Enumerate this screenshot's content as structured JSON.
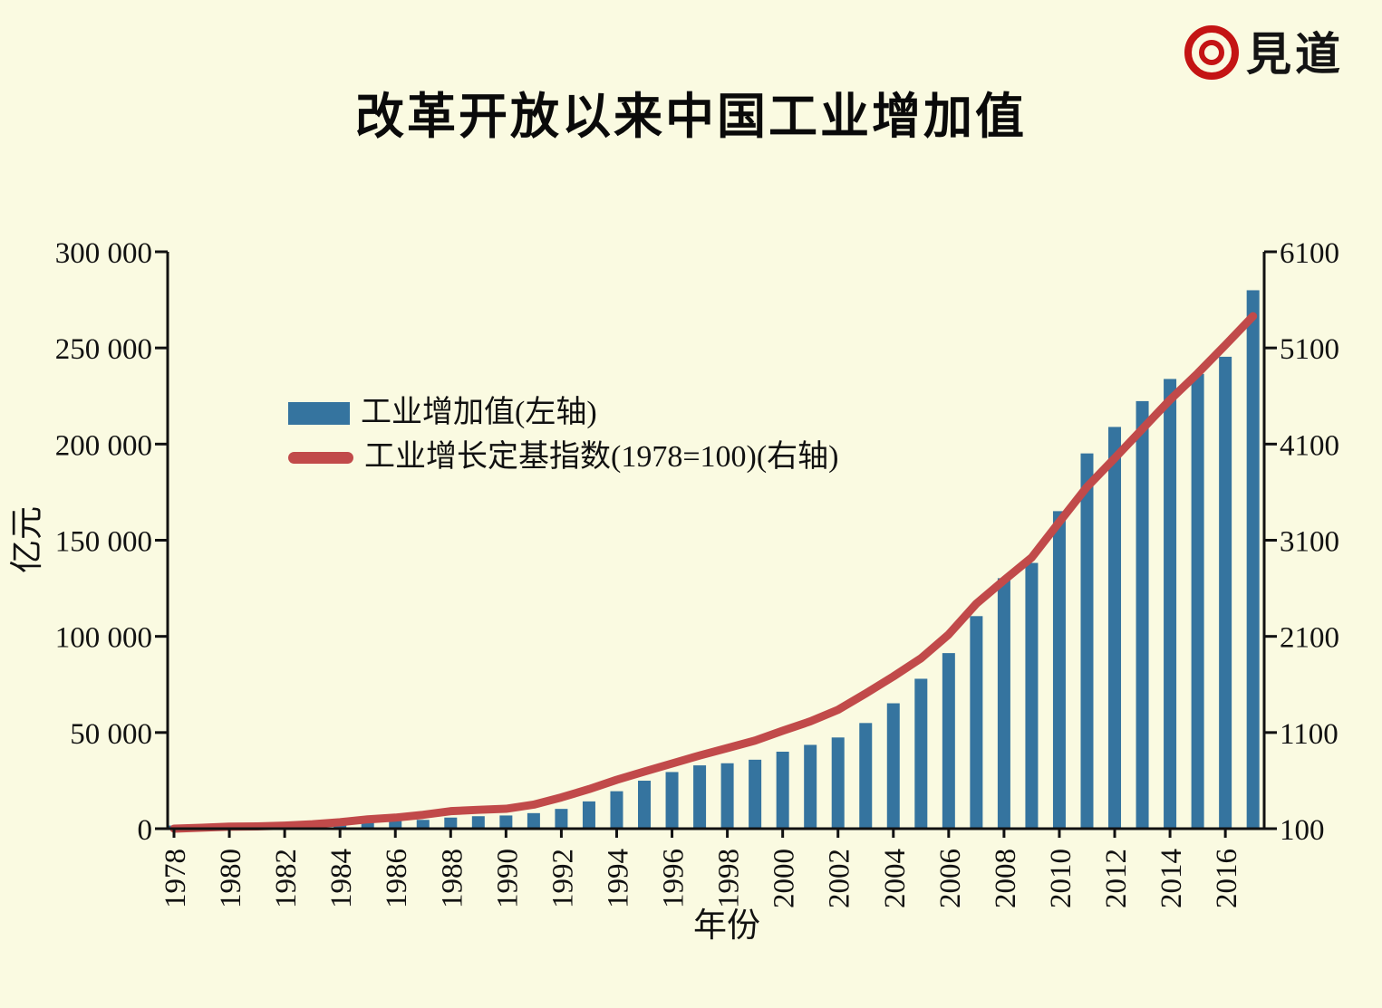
{
  "page": {
    "background": "#fafae1"
  },
  "logo": {
    "icon": "concentric-circles-icon",
    "icon_color": "#c41414",
    "text": "見道"
  },
  "title": "改革开放以来中国工业增加值",
  "legend": {
    "items": [
      {
        "label": "工业增加值(左轴)",
        "swatch": "bar",
        "color": "#35749f"
      },
      {
        "label": "工业增长定基指数(1978=100)(右轴)",
        "swatch": "line",
        "color": "#c14a4a"
      }
    ]
  },
  "chart_data": {
    "type": "bar+line",
    "title": "改革开放以来中国工业增加值",
    "xlabel": "年份",
    "ylabel_left": "亿元",
    "grid": false,
    "legend_position": "upper-left-inside",
    "x": [
      1978,
      1979,
      1980,
      1981,
      1982,
      1983,
      1984,
      1985,
      1986,
      1987,
      1988,
      1989,
      1990,
      1991,
      1992,
      1993,
      1994,
      1995,
      1996,
      1997,
      1998,
      1999,
      2000,
      2001,
      2002,
      2003,
      2004,
      2005,
      2006,
      2007,
      2008,
      2009,
      2010,
      2011,
      2012,
      2013,
      2014,
      2015,
      2016,
      2017
    ],
    "series": [
      {
        "name": "工业增加值(左轴)",
        "type": "bar",
        "axis": "left",
        "color": "#35749f",
        "values": [
          1622,
          1770,
          1997,
          2048,
          2163,
          2375,
          2789,
          3449,
          3967,
          4586,
          5777,
          6484,
          6858,
          8087,
          10285,
          14188,
          19481,
          24951,
          29448,
          32921,
          34018,
          35861,
          40034,
          43581,
          47431,
          54946,
          65210,
          77961,
          91311,
          110535,
          130260,
          138196,
          165126,
          195143,
          208906,
          222338,
          233856,
          236506,
          245406,
          279997
        ]
      },
      {
        "name": "工业增长定基指数(1978=100)(右轴)",
        "type": "line",
        "axis": "right",
        "color": "#c14a4a",
        "values": [
          100,
          110,
          121,
          124,
          132,
          146,
          167,
          197,
          215,
          244,
          282,
          296,
          307,
          350,
          425,
          511,
          608,
          694,
          778,
          861,
          938,
          1016,
          1118,
          1216,
          1336,
          1506,
          1683,
          1872,
          2120,
          2440,
          2684,
          2920,
          3290,
          3655,
          3953,
          4257,
          4560,
          4836,
          5130,
          5430
        ]
      }
    ],
    "left_axis": {
      "min": 0,
      "max": 300000,
      "ticks": [
        0,
        50000,
        100000,
        150000,
        200000,
        250000,
        300000
      ],
      "tick_labels": [
        "0",
        "50 000",
        "100 000",
        "150 000",
        "200 000",
        "250 000",
        "300 000"
      ]
    },
    "right_axis": {
      "min": 100,
      "max": 6100,
      "ticks": [
        100,
        1100,
        2100,
        3100,
        4100,
        5100,
        6100
      ],
      "tick_labels": [
        "100",
        "1100",
        "2100",
        "3100",
        "4100",
        "5100",
        "6100"
      ]
    },
    "x_tick_years": [
      1978,
      1980,
      1982,
      1984,
      1986,
      1988,
      1990,
      1992,
      1994,
      1996,
      1998,
      2000,
      2002,
      2004,
      2006,
      2008,
      2010,
      2012,
      2014,
      2016
    ]
  }
}
